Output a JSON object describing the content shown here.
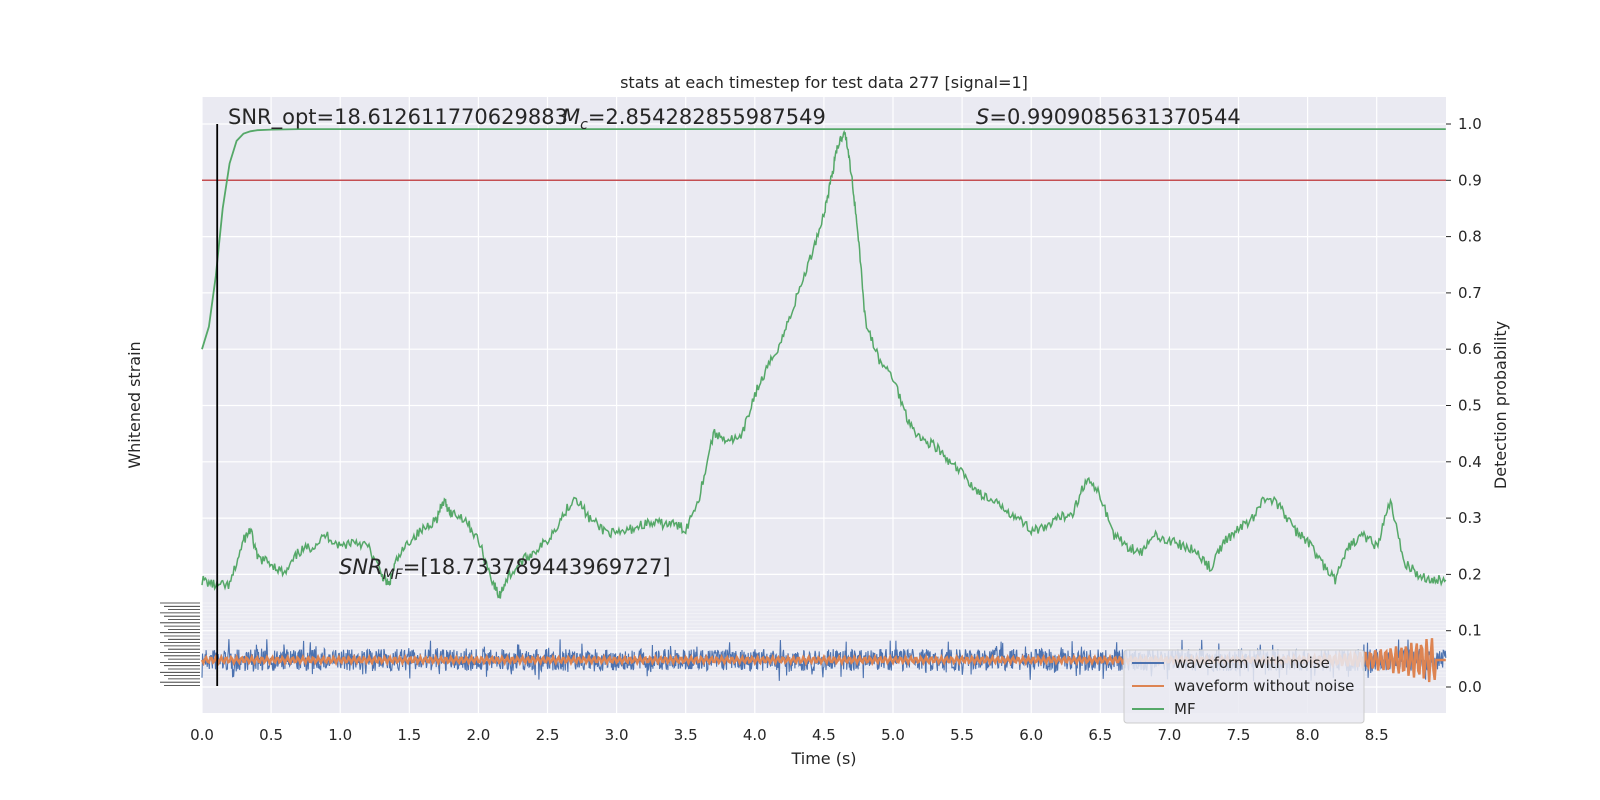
{
  "chart_data": {
    "type": "line",
    "title": "stats at each timestep for test data 277 [signal=1]",
    "xlabel": "Time (s)",
    "ylabel_left": "Whitened strain",
    "ylabel_right": "Detection probability",
    "xlim": [
      0.0,
      9.0
    ],
    "ylim_right": [
      -0.02,
      1.05
    ],
    "xticks": [
      "0.0",
      "0.5",
      "1.0",
      "1.5",
      "2.0",
      "2.5",
      "3.0",
      "3.5",
      "4.0",
      "4.5",
      "5.0",
      "5.5",
      "6.0",
      "6.5",
      "7.0",
      "7.5",
      "8.0",
      "8.5"
    ],
    "yticks_right": [
      "0.0",
      "0.1",
      "0.2",
      "0.3",
      "0.4",
      "0.5",
      "0.6",
      "0.7",
      "0.8",
      "0.9",
      "1.0"
    ],
    "threshold": 0.9,
    "marker_time": 0.11,
    "annotations": {
      "snr_opt": "SNR_opt=18.612611770629883",
      "mc_prefix": "M",
      "mc_sub": "c",
      "mc_value": "=2.854282855987549",
      "s_prefix": "S",
      "s_value": "=0.9909085631370544",
      "snr_mf_prefix": "SNR",
      "snr_mf_sub": "MF",
      "snr_mf_value": "=[18.733789443969727]"
    },
    "legend": {
      "position": "lower-right",
      "entries": [
        "waveform with noise",
        "waveform without noise",
        "MF"
      ]
    },
    "colors": {
      "noise": "#4c72b0",
      "clean": "#dd8452",
      "mf": "#55a868",
      "threshold": "#c44e52",
      "marker": "#000000",
      "panel": "#eaeaf2"
    },
    "series": [
      {
        "name": "MF",
        "x": [
          0.0,
          0.05,
          0.1,
          0.15,
          0.2,
          0.25,
          0.3,
          0.35,
          0.4,
          0.5,
          0.7,
          1.0,
          9.0
        ],
        "y": [
          0.6,
          0.64,
          0.73,
          0.85,
          0.93,
          0.97,
          0.983,
          0.987,
          0.989,
          0.99,
          0.991,
          0.991,
          0.991
        ]
      },
      {
        "name": "Detection probability",
        "x": [
          0.0,
          0.1,
          0.2,
          0.3,
          0.35,
          0.4,
          0.5,
          0.6,
          0.7,
          0.8,
          0.9,
          1.0,
          1.1,
          1.2,
          1.3,
          1.35,
          1.4,
          1.5,
          1.6,
          1.7,
          1.75,
          1.8,
          1.9,
          2.0,
          2.1,
          2.15,
          2.2,
          2.3,
          2.4,
          2.5,
          2.6,
          2.7,
          2.8,
          2.9,
          3.0,
          3.1,
          3.2,
          3.3,
          3.4,
          3.5,
          3.6,
          3.7,
          3.8,
          3.9,
          4.0,
          4.1,
          4.2,
          4.3,
          4.4,
          4.5,
          4.55,
          4.6,
          4.65,
          4.7,
          4.75,
          4.8,
          4.9,
          5.0,
          5.1,
          5.2,
          5.3,
          5.4,
          5.5,
          5.6,
          5.7,
          5.8,
          5.9,
          6.0,
          6.1,
          6.2,
          6.3,
          6.4,
          6.5,
          6.6,
          6.7,
          6.8,
          6.9,
          7.0,
          7.1,
          7.2,
          7.3,
          7.4,
          7.5,
          7.6,
          7.7,
          7.8,
          7.9,
          8.0,
          8.1,
          8.2,
          8.3,
          8.4,
          8.5,
          8.6,
          8.7,
          8.8,
          8.9,
          9.0
        ],
        "y": [
          0.19,
          0.18,
          0.18,
          0.26,
          0.28,
          0.23,
          0.22,
          0.2,
          0.24,
          0.25,
          0.27,
          0.25,
          0.26,
          0.25,
          0.2,
          0.18,
          0.22,
          0.26,
          0.28,
          0.3,
          0.33,
          0.31,
          0.3,
          0.26,
          0.19,
          0.16,
          0.19,
          0.22,
          0.24,
          0.26,
          0.3,
          0.34,
          0.3,
          0.28,
          0.27,
          0.28,
          0.29,
          0.29,
          0.29,
          0.28,
          0.34,
          0.45,
          0.44,
          0.44,
          0.52,
          0.57,
          0.62,
          0.69,
          0.76,
          0.84,
          0.9,
          0.96,
          0.99,
          0.91,
          0.8,
          0.65,
          0.58,
          0.55,
          0.48,
          0.44,
          0.43,
          0.4,
          0.38,
          0.35,
          0.33,
          0.32,
          0.3,
          0.28,
          0.28,
          0.3,
          0.31,
          0.37,
          0.34,
          0.27,
          0.25,
          0.24,
          0.27,
          0.26,
          0.25,
          0.24,
          0.21,
          0.26,
          0.28,
          0.3,
          0.34,
          0.32,
          0.28,
          0.26,
          0.22,
          0.19,
          0.25,
          0.27,
          0.25,
          0.33,
          0.22,
          0.2,
          0.19,
          0.19
        ]
      },
      {
        "name": "waveform with noise",
        "description_values": {
          "center": 0.05,
          "amplitude": 0.03
        }
      },
      {
        "name": "waveform without noise",
        "description_values": {
          "center": 0.05,
          "chirp_end": 8.9
        }
      }
    ]
  }
}
